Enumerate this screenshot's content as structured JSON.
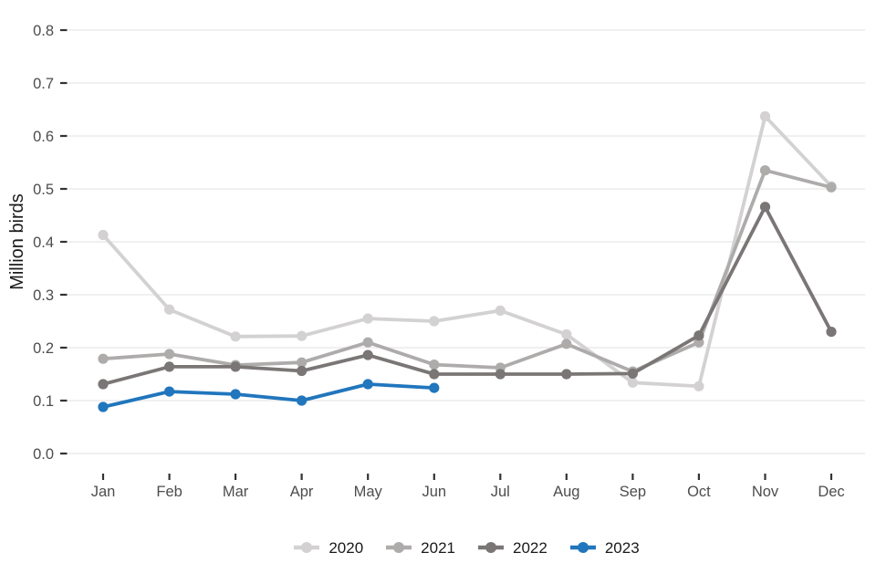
{
  "chart_data": {
    "type": "line",
    "title": "",
    "ylabel": "Million birds",
    "xlabel": "",
    "categories": [
      "Jan",
      "Feb",
      "Mar",
      "Apr",
      "May",
      "Jun",
      "Jul",
      "Aug",
      "Sep",
      "Oct",
      "Nov",
      "Dec"
    ],
    "y_axis": {
      "ticks": [
        0,
        0.1,
        0.2,
        0.3,
        0.4,
        0.5,
        0.6,
        0.7,
        0.8
      ],
      "labels": [
        "0.0",
        "0.1",
        "0.2",
        "0.3",
        "0.4",
        "0.5",
        "0.6",
        "0.7",
        "0.8"
      ],
      "range": [
        0,
        0.82
      ]
    },
    "grid": "horizontal-only",
    "legend_position": "bottom-center",
    "series": [
      {
        "name": "2020",
        "color": "#d3d1d1",
        "values": [
          0.413,
          0.272,
          0.221,
          0.222,
          0.255,
          0.25,
          0.27,
          0.225,
          0.134,
          0.127,
          0.637,
          0.505
        ]
      },
      {
        "name": "2021",
        "color": "#aeabab",
        "values": [
          0.179,
          0.188,
          0.167,
          0.172,
          0.21,
          0.168,
          0.162,
          0.207,
          0.155,
          0.21,
          0.535,
          0.503
        ]
      },
      {
        "name": "2022",
        "color": "#7b7676",
        "values": [
          0.131,
          0.164,
          0.164,
          0.156,
          0.186,
          0.15,
          0.15,
          0.15,
          0.151,
          0.223,
          0.466,
          0.23
        ]
      },
      {
        "name": "2023",
        "color": "#2176bd",
        "values": [
          0.088,
          0.117,
          0.112,
          0.1,
          0.131,
          0.124,
          null,
          null,
          null,
          null,
          null,
          null
        ]
      }
    ],
    "style": {
      "background": "#ffffff",
      "grid_color": "#e8e8e8",
      "tick_color": "#333333",
      "tick_label_color": "#4d4d4d",
      "axis_title_color": "#1a1a1a",
      "legend_text_color": "#1a1a1a"
    }
  }
}
